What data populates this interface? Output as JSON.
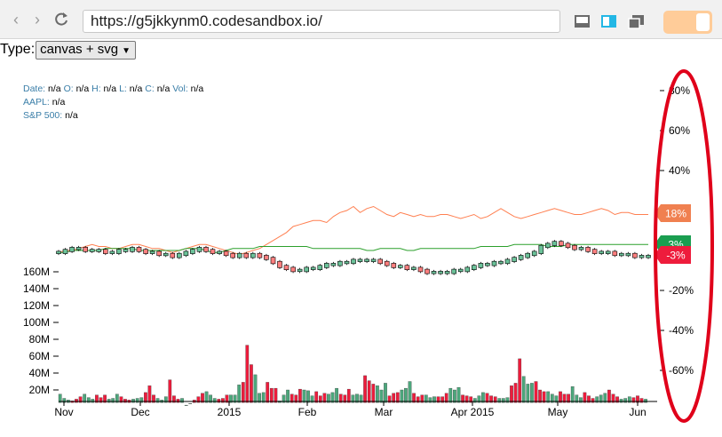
{
  "browser": {
    "url": "https://g5jkkynm0.codesandbox.io/",
    "back_icon": "chevron-left",
    "forward_icon": "chevron-right",
    "reload_icon": "reload",
    "toolbar_icons": [
      "dock-bottom-icon",
      "dock-side-icon",
      "popout-icon"
    ],
    "toggle_color": "#ffcc99"
  },
  "controls": {
    "type_label": "Type:",
    "type_value": "canvas + svg"
  },
  "tooltip": {
    "date_label": "Date:",
    "date_value": "n/a",
    "o_label": "O:",
    "o_value": "n/a",
    "h_label": "H:",
    "h_value": "n/a",
    "l_label": "L:",
    "l_value": "n/a",
    "c_label": "C:",
    "c_value": "n/a",
    "vol_label": "Vol:",
    "vol_value": "n/a",
    "aapl_label": "AAPL:",
    "aapl_value": "n/a",
    "sp_label": "S&P 500:",
    "sp_value": "n/a"
  },
  "chart_data": {
    "type": "line",
    "x_ticks": [
      "Nov",
      "Dec",
      "2015",
      "Feb",
      "Mar",
      "Apr 2015",
      "May",
      "Jun"
    ],
    "percent_axis": {
      "ticks": [
        "80%",
        "60%",
        "40%",
        "20%",
        "0%",
        "-20%",
        "-40%",
        "-60%"
      ],
      "ylim": [
        -65,
        85
      ]
    },
    "volume_axis": {
      "ticks": [
        "160M",
        "140M",
        "120M",
        "100M",
        "80M",
        "60M",
        "40M",
        "20M"
      ],
      "ylim": [
        0,
        170
      ]
    },
    "series": [
      {
        "name": "AAPL",
        "color": "#ff7f50",
        "values": [
          -1,
          0,
          0,
          1,
          2,
          3,
          2,
          2,
          1,
          1,
          2,
          3,
          3,
          2,
          1,
          1,
          0,
          -1,
          0,
          1,
          2,
          3,
          3,
          2,
          1,
          0,
          -1,
          -2,
          -1,
          0,
          1,
          3,
          5,
          7,
          9,
          12,
          13,
          14,
          15,
          15,
          14,
          17,
          19,
          20,
          22,
          19,
          21,
          22,
          20,
          18,
          17,
          19,
          18,
          17,
          18,
          17,
          17,
          18,
          18,
          17,
          16,
          17,
          18,
          16,
          17,
          19,
          21,
          19,
          17,
          16,
          17,
          18,
          19,
          20,
          21,
          20,
          19,
          18,
          18,
          19,
          20,
          21,
          20,
          18,
          19,
          19,
          18,
          18,
          18
        ]
      },
      {
        "name": "S&P 500",
        "color": "#2ca02c",
        "values": [
          -1,
          -1,
          0,
          0,
          0,
          0,
          0,
          1,
          1,
          1,
          1,
          1,
          0,
          0,
          0,
          0,
          0,
          0,
          0,
          1,
          1,
          1,
          0,
          -1,
          -1,
          0,
          1,
          1,
          1,
          1,
          2,
          2,
          2,
          2,
          2,
          2,
          2,
          2,
          1,
          1,
          1,
          1,
          1,
          1,
          1,
          1,
          0,
          0,
          1,
          1,
          1,
          1,
          0,
          0,
          1,
          1,
          1,
          1,
          1,
          1,
          1,
          1,
          1,
          2,
          2,
          2,
          2,
          2,
          3,
          3,
          3,
          3,
          3,
          2,
          2,
          2,
          3,
          3,
          3,
          3,
          3,
          3,
          3,
          3,
          3,
          3,
          3,
          3,
          3
        ]
      },
      {
        "name": "OHLC",
        "color": "#000000",
        "values": [
          -1,
          0,
          1,
          1,
          0,
          0,
          0,
          -1,
          -1,
          0,
          0,
          1,
          0,
          -1,
          -1,
          -2,
          -2,
          -3,
          -2,
          -1,
          0,
          1,
          0,
          -1,
          -1,
          -2,
          -3,
          -2,
          -3,
          -2,
          -3,
          -4,
          -6,
          -8,
          -9,
          -10,
          -10,
          -9,
          -9,
          -8,
          -7,
          -7,
          -6,
          -6,
          -5,
          -5,
          -5,
          -5,
          -6,
          -7,
          -8,
          -8,
          -9,
          -9,
          -10,
          -11,
          -11,
          -11,
          -11,
          -10,
          -10,
          -9,
          -8,
          -7,
          -7,
          -6,
          -6,
          -5,
          -4,
          -3,
          -2,
          -1,
          2,
          3,
          4,
          3,
          2,
          1,
          1,
          0,
          -1,
          -1,
          -1,
          -2,
          -2,
          -2,
          -3,
          -3,
          -3
        ]
      }
    ],
    "current_labels": [
      {
        "text": "18%",
        "color": "#f08050"
      },
      {
        "text": "3%",
        "color": "#1a9e50"
      },
      {
        "text": "-3%",
        "color": "#ee1c3c"
      }
    ],
    "volume": {
      "values": [
        15,
        10,
        8,
        7,
        9,
        12,
        15,
        11,
        9,
        14,
        11,
        14,
        9,
        10,
        15,
        12,
        9,
        8,
        9,
        10,
        11,
        17,
        25,
        14,
        10,
        8,
        12,
        32,
        13,
        9,
        10,
        2,
        4,
        8,
        12,
        16,
        18,
        14,
        10,
        9,
        10,
        14,
        14,
        14,
        26,
        29,
        73,
        50,
        38,
        16,
        17,
        29,
        22,
        22,
        7,
        14,
        20,
        15,
        14,
        21,
        20,
        19,
        13,
        18,
        13,
        16,
        15,
        17,
        22,
        15,
        14,
        21,
        14,
        15,
        14,
        37,
        31,
        27,
        25,
        20,
        28,
        13,
        16,
        17,
        20,
        22,
        30,
        16,
        12,
        14,
        14,
        11,
        12,
        12,
        12,
        16,
        22,
        20,
        23,
        14,
        13,
        12,
        10,
        13,
        17,
        16,
        13,
        12,
        10,
        10,
        11,
        25,
        28,
        57,
        36,
        27,
        28,
        30,
        20,
        18,
        18,
        15,
        13,
        18,
        15,
        15,
        24,
        14,
        11,
        17,
        13,
        10,
        12,
        14,
        16,
        20,
        15,
        12,
        9,
        10,
        12,
        11,
        13,
        10,
        9
      ],
      "colors": [
        "#4ca77c",
        "#ee1c3c"
      ]
    }
  },
  "annotation": {
    "ellipse_color": "#e0001a"
  }
}
